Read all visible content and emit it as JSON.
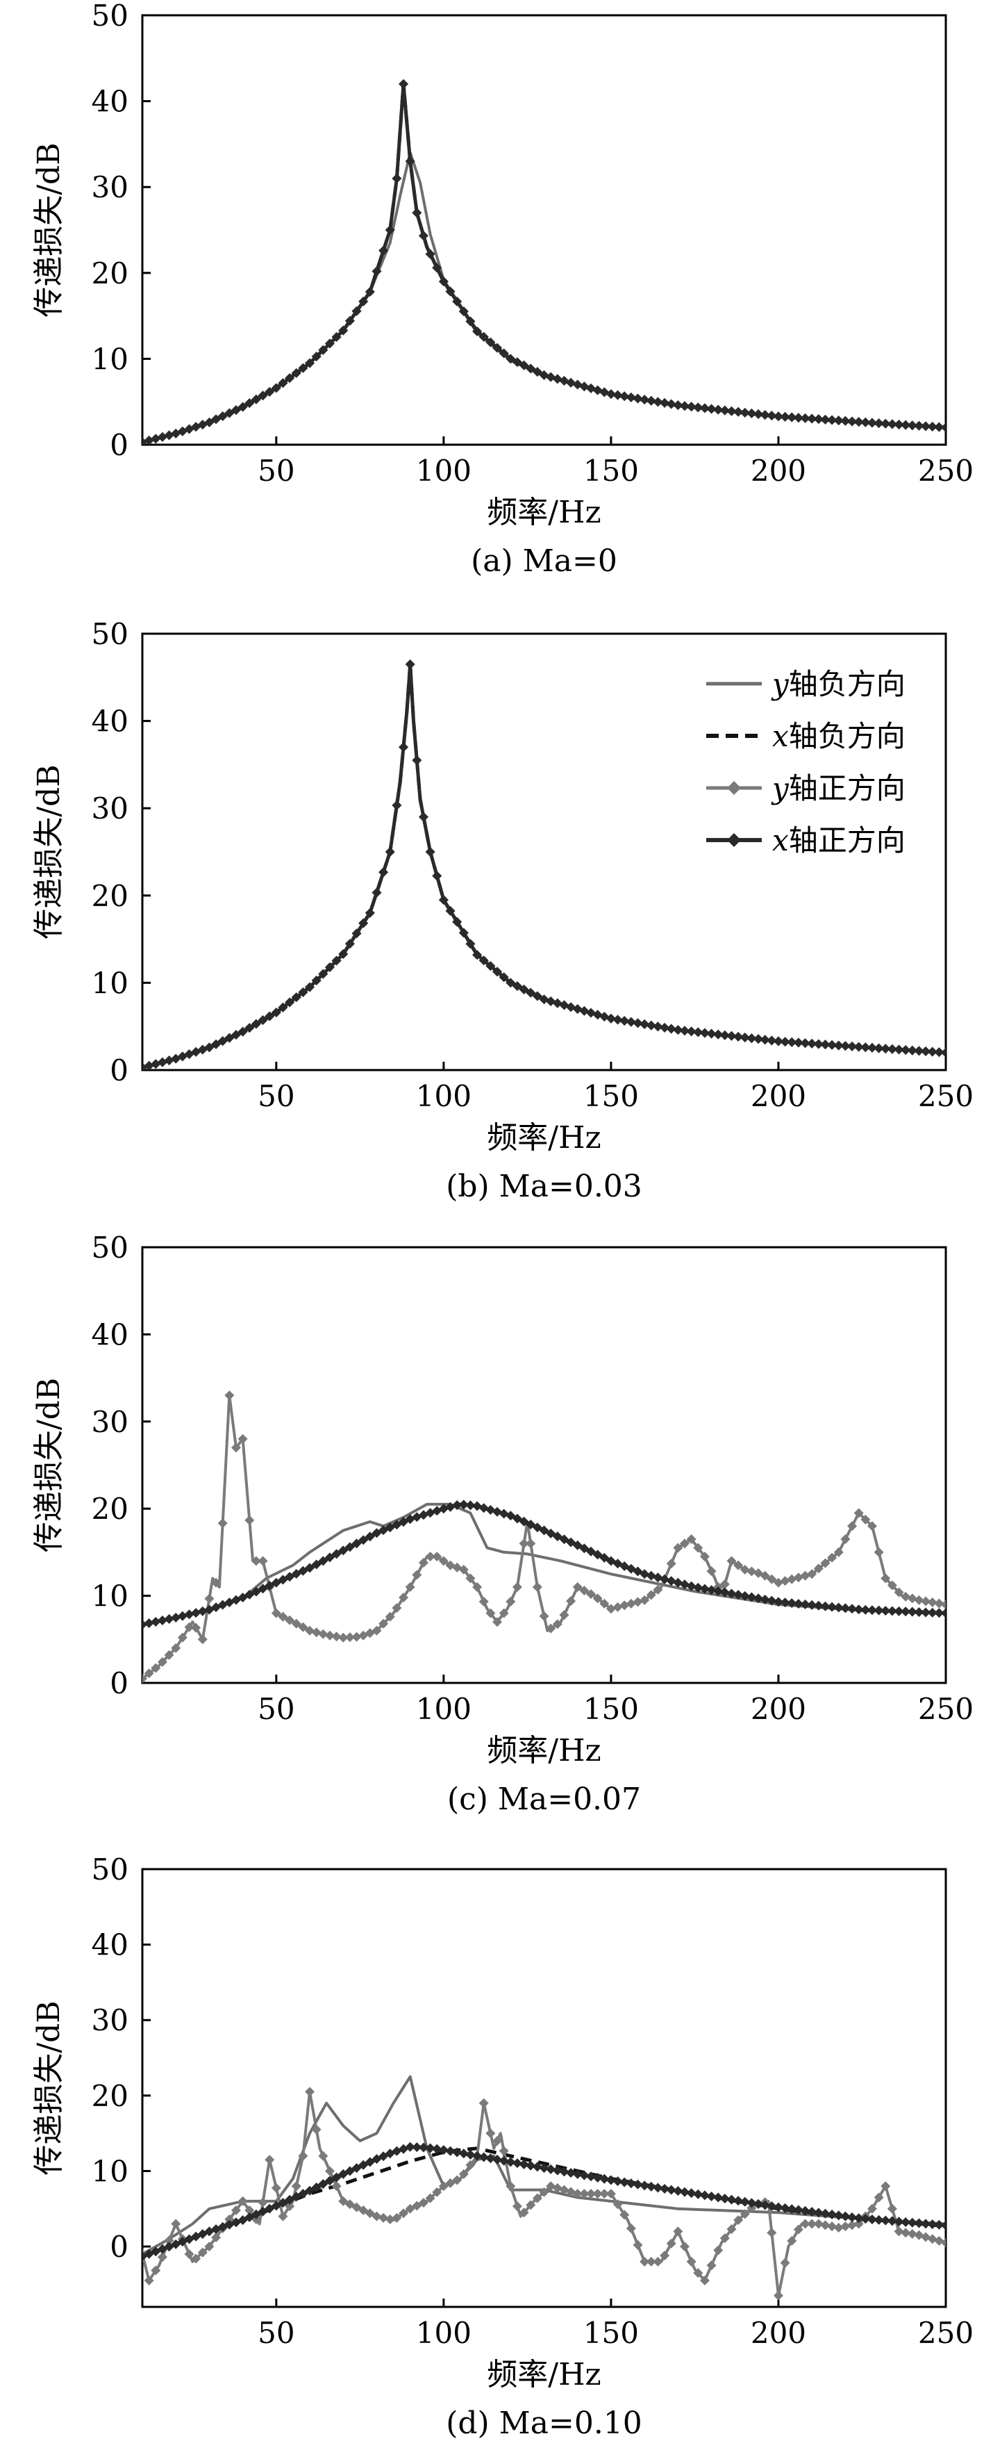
{
  "chart_data": [
    {
      "type": "line",
      "caption": "(a) Ma=0",
      "xlabel": "频率/Hz",
      "ylabel": "传递损失/dB",
      "xlim": [
        10,
        250
      ],
      "ylim": [
        0,
        50
      ],
      "xticks": [
        50,
        100,
        150,
        200,
        250
      ],
      "yticks": [
        0,
        10,
        20,
        30,
        40,
        50
      ],
      "series": [
        {
          "name": "y轴负方向",
          "x": [
            10,
            20,
            30,
            40,
            50,
            60,
            70,
            78,
            84,
            87,
            90,
            93,
            96,
            100,
            110,
            120,
            130,
            150,
            170,
            200,
            230,
            250
          ],
          "y": [
            0.3,
            1.3,
            2.6,
            4.4,
            6.6,
            9.5,
            13.3,
            17.8,
            23.5,
            29,
            34,
            30.5,
            24.5,
            19.2,
            13,
            9.8,
            8,
            5.8,
            4.5,
            3.2,
            2.4,
            2
          ]
        },
        {
          "name": "x轴负方向",
          "x": [
            10,
            20,
            30,
            40,
            50,
            60,
            70,
            78,
            84,
            86,
            88,
            90,
            92,
            95,
            100,
            110,
            120,
            130,
            150,
            170,
            200,
            230,
            250
          ],
          "y": [
            0.3,
            1.3,
            2.6,
            4.4,
            6.6,
            9.5,
            13.3,
            17.8,
            25,
            31,
            42,
            33,
            27,
            23,
            19,
            13.2,
            10,
            8.1,
            5.9,
            4.6,
            3.3,
            2.5,
            2
          ]
        },
        {
          "name": "y轴正方向",
          "x": [
            10,
            20,
            30,
            40,
            50,
            60,
            70,
            78,
            84,
            86,
            88,
            90,
            92,
            95,
            100,
            110,
            120,
            130,
            150,
            170,
            200,
            230,
            250
          ],
          "y": [
            0.3,
            1.3,
            2.6,
            4.4,
            6.6,
            9.5,
            13.3,
            17.8,
            25,
            31,
            42,
            33,
            27,
            23,
            19,
            13.2,
            10,
            8.1,
            5.9,
            4.6,
            3.3,
            2.5,
            2
          ]
        },
        {
          "name": "x轴正方向",
          "x": [
            10,
            20,
            30,
            40,
            50,
            60,
            70,
            78,
            84,
            86,
            88,
            90,
            92,
            95,
            100,
            110,
            120,
            130,
            150,
            170,
            200,
            230,
            250
          ],
          "y": [
            0.3,
            1.3,
            2.6,
            4.4,
            6.6,
            9.5,
            13.3,
            17.8,
            25,
            31,
            42,
            33,
            27,
            23,
            19,
            13.2,
            10,
            8.1,
            5.9,
            4.6,
            3.3,
            2.5,
            2
          ]
        }
      ]
    },
    {
      "type": "line",
      "caption": "(b) Ma=0.03",
      "xlabel": "频率/Hz",
      "ylabel": "传递损失/dB",
      "xlim": [
        10,
        250
      ],
      "ylim": [
        0,
        50
      ],
      "xticks": [
        50,
        100,
        150,
        200,
        250
      ],
      "yticks": [
        0,
        10,
        20,
        30,
        40,
        50
      ],
      "legend": {
        "position": "top-right",
        "entries": [
          "y轴负方向",
          "x轴负方向",
          "y轴正方向",
          "x轴正方向"
        ]
      },
      "series": [
        {
          "name": "y轴负方向",
          "x": [
            10,
            20,
            30,
            40,
            50,
            60,
            70,
            78,
            84,
            87,
            89,
            90,
            91,
            93,
            96,
            100,
            110,
            120,
            130,
            150,
            170,
            200,
            230,
            250
          ],
          "y": [
            0.3,
            1.3,
            2.6,
            4.4,
            6.6,
            9.5,
            13.3,
            18,
            25,
            33,
            41,
            45,
            40,
            31,
            25,
            19.5,
            13.2,
            10,
            8.1,
            5.9,
            4.6,
            3.3,
            2.5,
            2
          ]
        },
        {
          "name": "x轴负方向",
          "x": [
            10,
            20,
            30,
            40,
            50,
            60,
            70,
            78,
            84,
            87,
            89,
            90,
            91,
            93,
            96,
            100,
            110,
            120,
            130,
            150,
            170,
            200,
            230,
            250
          ],
          "y": [
            0.3,
            1.3,
            2.6,
            4.4,
            6.6,
            9.5,
            13.3,
            18,
            25,
            33,
            41,
            46.5,
            40,
            31,
            25,
            19.5,
            13.2,
            10,
            8.1,
            5.9,
            4.6,
            3.3,
            2.5,
            2
          ]
        },
        {
          "name": "y轴正方向",
          "x": [
            10,
            20,
            30,
            40,
            50,
            60,
            70,
            78,
            84,
            87,
            89,
            90,
            91,
            93,
            96,
            100,
            110,
            120,
            130,
            150,
            170,
            200,
            230,
            250
          ],
          "y": [
            0.3,
            1.3,
            2.6,
            4.4,
            6.6,
            9.5,
            13.3,
            18,
            25,
            33,
            41,
            46.5,
            40,
            31,
            25,
            19.5,
            13.2,
            10,
            8.1,
            5.9,
            4.6,
            3.3,
            2.5,
            2
          ]
        },
        {
          "name": "x轴正方向",
          "x": [
            10,
            20,
            30,
            40,
            50,
            60,
            70,
            78,
            84,
            87,
            89,
            90,
            91,
            93,
            96,
            100,
            110,
            120,
            130,
            150,
            170,
            200,
            230,
            250
          ],
          "y": [
            0.3,
            1.3,
            2.6,
            4.4,
            6.6,
            9.5,
            13.3,
            18,
            25,
            33,
            41,
            46.5,
            40,
            31,
            25,
            19.5,
            13.2,
            10,
            8.1,
            5.9,
            4.6,
            3.3,
            2.5,
            2
          ]
        }
      ]
    },
    {
      "type": "line",
      "caption": "(c) Ma=0.07",
      "xlabel": "频率/Hz",
      "ylabel": "传递损失/dB",
      "xlim": [
        10,
        250
      ],
      "ylim": [
        0,
        50
      ],
      "xticks": [
        50,
        100,
        150,
        200,
        250
      ],
      "yticks": [
        0,
        10,
        20,
        30,
        40,
        50
      ],
      "series": [
        {
          "name": "y轴负方向",
          "x": [
            10,
            20,
            30,
            40,
            47,
            55,
            60,
            70,
            78,
            82,
            88,
            95,
            102,
            108,
            113,
            118,
            125,
            135,
            150,
            175,
            200,
            225,
            250
          ],
          "y": [
            6.7,
            7.5,
            8.5,
            9.7,
            12,
            13.5,
            15,
            17.5,
            18.5,
            18,
            19,
            20.5,
            20.5,
            19.5,
            15.5,
            15,
            14.8,
            14,
            12.5,
            10.5,
            9,
            8.3,
            8
          ]
        },
        {
          "name": "x轴负方向",
          "x": [
            10,
            20,
            30,
            40,
            50,
            60,
            70,
            80,
            90,
            100,
            105,
            110,
            120,
            130,
            140,
            150,
            160,
            175,
            200,
            225,
            250
          ],
          "y": [
            6.7,
            7.5,
            8.4,
            9.8,
            11.5,
            13.2,
            15.2,
            17.2,
            18.8,
            20,
            20.5,
            20.3,
            19.2,
            17.5,
            15.8,
            14,
            12.5,
            11,
            9.3,
            8.4,
            8
          ]
        },
        {
          "name": "y轴正方向",
          "x": [
            10,
            15,
            20,
            25,
            28,
            31,
            33,
            36,
            38,
            40,
            43,
            46,
            50,
            55,
            60,
            65,
            70,
            75,
            80,
            85,
            90,
            95,
            98,
            102,
            106,
            110,
            113,
            116,
            119,
            122,
            125,
            128,
            131,
            135,
            140,
            145,
            150,
            160,
            165,
            170,
            174,
            178,
            181,
            183,
            186,
            190,
            195,
            200,
            210,
            218,
            224,
            228,
            232,
            237,
            242,
            250
          ],
          "y": [
            0.5,
            2,
            4,
            7,
            5,
            12,
            11,
            33,
            27,
            28,
            14,
            14,
            8,
            7,
            6,
            5.5,
            5.2,
            5.3,
            6,
            8,
            11,
            14.5,
            14.5,
            13.5,
            13,
            11,
            8.5,
            7,
            8.5,
            11,
            18.5,
            11,
            6,
            7,
            11,
            10,
            8.5,
            9.5,
            11,
            15.5,
            16.5,
            14.5,
            12,
            10,
            14,
            13,
            12.5,
            11.5,
            12.5,
            15,
            19.5,
            18,
            12,
            10,
            9.5,
            9
          ]
        },
        {
          "name": "x轴正方向",
          "x": [
            10,
            20,
            30,
            40,
            50,
            60,
            70,
            80,
            90,
            100,
            105,
            110,
            120,
            130,
            140,
            150,
            160,
            175,
            200,
            225,
            250
          ],
          "y": [
            6.7,
            7.5,
            8.4,
            9.8,
            11.5,
            13.2,
            15.2,
            17.2,
            18.8,
            20,
            20.5,
            20.3,
            19.2,
            17.5,
            15.8,
            14,
            12.5,
            11,
            9.3,
            8.4,
            8
          ]
        }
      ]
    },
    {
      "type": "line",
      "caption": "(d) Ma=0.10",
      "xlabel": "频率/Hz",
      "ylabel": "传递损失/dB",
      "xlim": [
        10,
        250
      ],
      "ylim": [
        -8,
        50
      ],
      "xticks": [
        50,
        100,
        150,
        200,
        250
      ],
      "yticks": [
        0,
        10,
        20,
        30,
        40,
        50
      ],
      "series": [
        {
          "name": "y轴负方向",
          "x": [
            10,
            18,
            25,
            30,
            40,
            50,
            55,
            60,
            65,
            70,
            75,
            80,
            85,
            90,
            95,
            100,
            105,
            110,
            115,
            120,
            130,
            140,
            150,
            170,
            200,
            230,
            250
          ],
          "y": [
            -1,
            1,
            3,
            5,
            6,
            6,
            9,
            15,
            19,
            16,
            14,
            15,
            19,
            22.5,
            13,
            8,
            9,
            11.5,
            12,
            7.5,
            7.5,
            6.5,
            6,
            5,
            4.5,
            3.5,
            3
          ]
        },
        {
          "name": "x轴负方向",
          "x": [
            10,
            20,
            30,
            40,
            50,
            60,
            70,
            80,
            90,
            100,
            105,
            110,
            115,
            120,
            125,
            130,
            150,
            175,
            200,
            225,
            250
          ],
          "y": [
            -1.3,
            0.3,
            2,
            3.5,
            5.2,
            7,
            8.3,
            9.8,
            11.3,
            12.5,
            12.8,
            13,
            12.5,
            12,
            11.5,
            11,
            9,
            7,
            5,
            3.7,
            2.7
          ]
        },
        {
          "name": "y轴正方向",
          "x": [
            10,
            12,
            15,
            20,
            25,
            30,
            35,
            40,
            45,
            48,
            52,
            55,
            58,
            60,
            63,
            66,
            70,
            75,
            80,
            85,
            90,
            95,
            100,
            105,
            110,
            112,
            115,
            117,
            120,
            123,
            127,
            132,
            140,
            150,
            155,
            160,
            165,
            170,
            175,
            178,
            183,
            188,
            193,
            197,
            200,
            203,
            207,
            212,
            218,
            224,
            228,
            232,
            236,
            242,
            250
          ],
          "y": [
            -1,
            -4.5,
            -2.5,
            3,
            -2,
            0,
            3,
            6,
            3,
            11.5,
            4,
            6,
            12,
            20.5,
            13,
            10,
            6,
            5,
            4,
            3.5,
            5,
            6,
            8,
            9,
            12,
            19,
            13,
            15,
            8,
            4,
            6,
            8,
            7,
            7,
            3.5,
            -2,
            -2,
            2,
            -3,
            -4.5,
            0.5,
            3.5,
            5.5,
            6,
            -6.5,
            0,
            3,
            3,
            2.5,
            3,
            5,
            8,
            2,
            1.5,
            0.5
          ]
        },
        {
          "name": "x轴正方向",
          "x": [
            10,
            20,
            30,
            40,
            50,
            60,
            70,
            80,
            85,
            90,
            95,
            100,
            110,
            120,
            130,
            140,
            150,
            175,
            200,
            225,
            250
          ],
          "y": [
            -1.3,
            0.3,
            2,
            3.5,
            5.4,
            7.4,
            9.6,
            11.6,
            12.5,
            13.2,
            13.1,
            12.8,
            12,
            11.2,
            10.4,
            9.6,
            8.8,
            7,
            5.2,
            3.7,
            2.8
          ]
        }
      ]
    }
  ]
}
